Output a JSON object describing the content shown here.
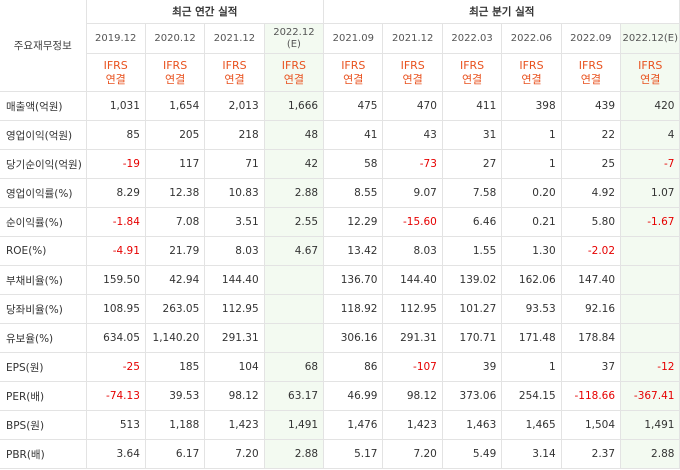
{
  "table": {
    "corner": "주요재무정보",
    "groups": [
      {
        "title": "최근 연간 실적",
        "columns": [
          {
            "period": "2019.12",
            "basis": "IFRS",
            "scope": "연결"
          },
          {
            "period": "2020.12",
            "basis": "IFRS",
            "scope": "연결"
          },
          {
            "period": "2021.12",
            "basis": "IFRS",
            "scope": "연결"
          },
          {
            "period": "2022.12",
            "estimate": "(E)",
            "basis": "IFRS",
            "scope": "연결"
          }
        ]
      },
      {
        "title": "최근 분기 실적",
        "columns": [
          {
            "period": "2021.09",
            "basis": "IFRS",
            "scope": "연결"
          },
          {
            "period": "2021.12",
            "basis": "IFRS",
            "scope": "연결"
          },
          {
            "period": "2022.03",
            "basis": "IFRS",
            "scope": "연결"
          },
          {
            "period": "2022.06",
            "basis": "IFRS",
            "scope": "연결"
          },
          {
            "period": "2022.09",
            "basis": "IFRS",
            "scope": "연결"
          },
          {
            "period": "2022.12",
            "estimate": "(E)",
            "basis": "IFRS",
            "scope": "연결"
          }
        ]
      }
    ],
    "rows": [
      {
        "label": "매출액(억원)",
        "values": [
          "1,031",
          "1,654",
          "2,013",
          "1,666",
          "475",
          "470",
          "411",
          "398",
          "439",
          "420"
        ]
      },
      {
        "label": "영업이익(억원)",
        "values": [
          "85",
          "205",
          "218",
          "48",
          "41",
          "43",
          "31",
          "1",
          "22",
          "4"
        ]
      },
      {
        "label": "당기순이익(억원)",
        "values": [
          "-19",
          "117",
          "71",
          "42",
          "58",
          "-73",
          "27",
          "1",
          "25",
          "-7"
        ]
      },
      {
        "label": "영업이익률(%)",
        "values": [
          "8.29",
          "12.38",
          "10.83",
          "2.88",
          "8.55",
          "9.07",
          "7.58",
          "0.20",
          "4.92",
          "1.07"
        ]
      },
      {
        "label": "순이익률(%)",
        "values": [
          "-1.84",
          "7.08",
          "3.51",
          "2.55",
          "12.29",
          "-15.60",
          "6.46",
          "0.21",
          "5.80",
          "-1.67"
        ]
      },
      {
        "label": "ROE(%)",
        "values": [
          "-4.91",
          "21.79",
          "8.03",
          "4.67",
          "13.42",
          "8.03",
          "1.55",
          "1.30",
          "-2.02",
          null
        ]
      },
      {
        "label": "부채비율(%)",
        "values": [
          "159.50",
          "42.94",
          "144.40",
          null,
          "136.70",
          "144.40",
          "139.02",
          "162.06",
          "147.40",
          null
        ]
      },
      {
        "label": "당좌비율(%)",
        "values": [
          "108.95",
          "263.05",
          "112.95",
          null,
          "118.92",
          "112.95",
          "101.27",
          "93.53",
          "92.16",
          null
        ]
      },
      {
        "label": "유보율(%)",
        "values": [
          "634.05",
          "1,140.20",
          "291.31",
          null,
          "306.16",
          "291.31",
          "170.71",
          "171.48",
          "178.84",
          null
        ]
      },
      {
        "label": "EPS(원)",
        "values": [
          "-25",
          "185",
          "104",
          "68",
          "86",
          "-107",
          "39",
          "1",
          "37",
          "-12"
        ]
      },
      {
        "label": "PER(배)",
        "values": [
          "-74.13",
          "39.53",
          "98.12",
          "63.17",
          "46.99",
          "98.12",
          "373.06",
          "254.15",
          "-118.66",
          "-367.41"
        ]
      },
      {
        "label": "BPS(원)",
        "values": [
          "513",
          "1,188",
          "1,423",
          "1,491",
          "1,476",
          "1,423",
          "1,463",
          "1,465",
          "1,504",
          "1,491"
        ]
      },
      {
        "label": "PBR(배)",
        "values": [
          "3.64",
          "6.17",
          "7.20",
          "2.88",
          "5.17",
          "7.20",
          "5.49",
          "3.14",
          "2.37",
          "2.88"
        ]
      }
    ]
  }
}
